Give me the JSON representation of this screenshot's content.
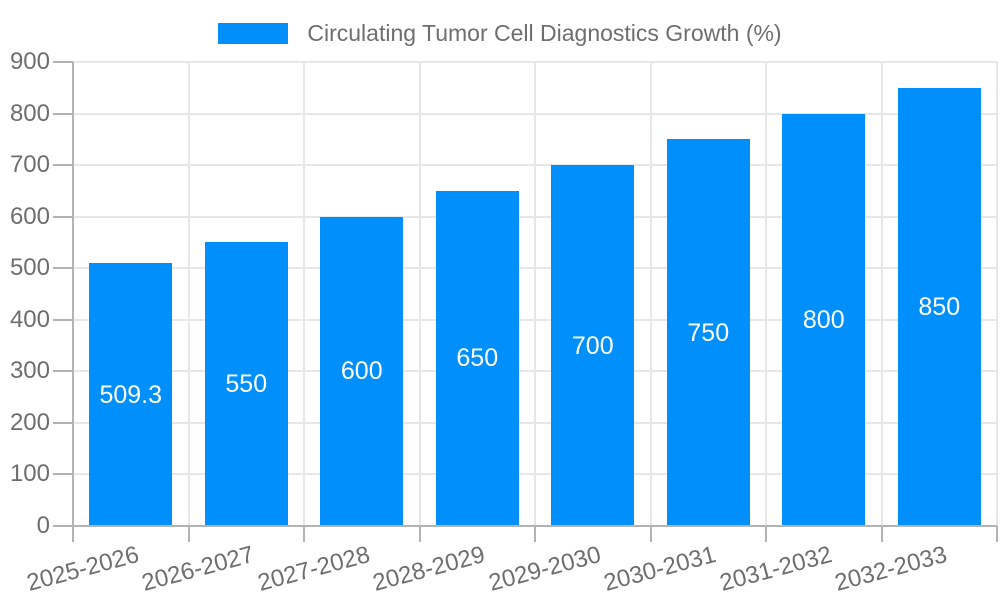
{
  "legend": {
    "label": "Circulating Tumor Cell Diagnostics Growth (%)"
  },
  "colors": {
    "bar": "#008FFB",
    "value_label": "#FFFFFF",
    "axis_text": "#6E6E6E",
    "legend_text": "#6E6E6E",
    "grid_line": "#E7E7E7",
    "axis_line": "#B3B3B3",
    "background": "#FFFFFF"
  },
  "chart_data": {
    "type": "bar",
    "title": "Circulating Tumor Cell Diagnostics Growth (%)",
    "categories": [
      "2025-2026",
      "2026-2027",
      "2027-2028",
      "2028-2029",
      "2029-2030",
      "2030-2031",
      "2031-2032",
      "2032-2033"
    ],
    "series": [
      {
        "name": "Circulating Tumor Cell Diagnostics Growth (%)",
        "values": [
          509.3,
          550,
          600,
          650,
          700,
          750,
          800,
          850
        ]
      }
    ],
    "value_labels": [
      "509.3",
      "550",
      "600",
      "650",
      "700",
      "750",
      "800",
      "850"
    ],
    "yticks": [
      "0",
      "100",
      "200",
      "300",
      "400",
      "500",
      "600",
      "700",
      "800",
      "900"
    ],
    "ytick_values": [
      0,
      100,
      200,
      300,
      400,
      500,
      600,
      700,
      800,
      900
    ],
    "ylim": [
      0,
      900
    ],
    "xlabel": "",
    "ylabel": "",
    "grid": true,
    "legend_position": "top-center",
    "xtick_rotation_deg": -15,
    "value_label_position": "center-of-bar"
  }
}
